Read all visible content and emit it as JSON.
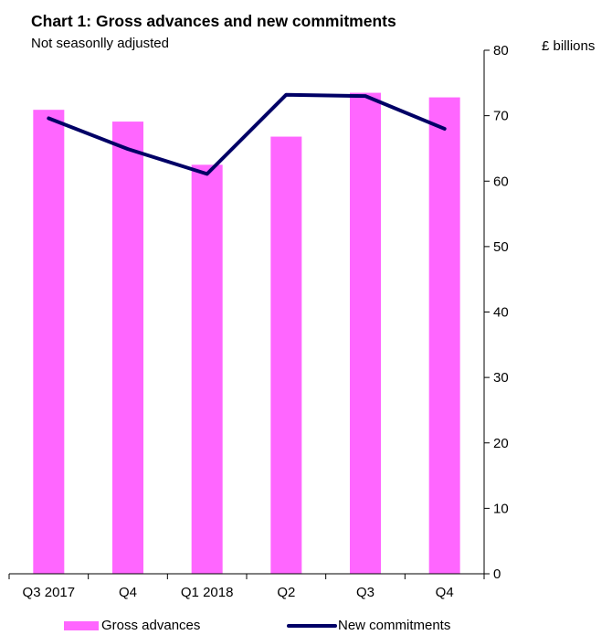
{
  "chart_data": {
    "type": "bar",
    "title": "Chart 1: Gross advances and new  commitments",
    "subtitle": "Not seasonlly adjusted",
    "unit_label": "£ billions",
    "categories": [
      "Q3 2017",
      "Q4",
      "Q1 2018",
      "Q2",
      "Q3",
      "Q4"
    ],
    "series": [
      {
        "name": "Gross advances",
        "type": "bar",
        "color": "#ff66ff",
        "values": [
          70.9,
          69.1,
          62.5,
          66.8,
          73.5,
          72.8
        ]
      },
      {
        "name": "New commitments",
        "type": "line",
        "color": "#000066",
        "values": [
          69.6,
          64.9,
          61.1,
          73.2,
          73.0,
          68.0
        ]
      }
    ],
    "ylim": [
      0,
      80
    ],
    "yticks": [
      0,
      10,
      20,
      30,
      40,
      50,
      60,
      70,
      80
    ],
    "y_axis_side": "right",
    "grid": false,
    "legend_position": "bottom"
  }
}
